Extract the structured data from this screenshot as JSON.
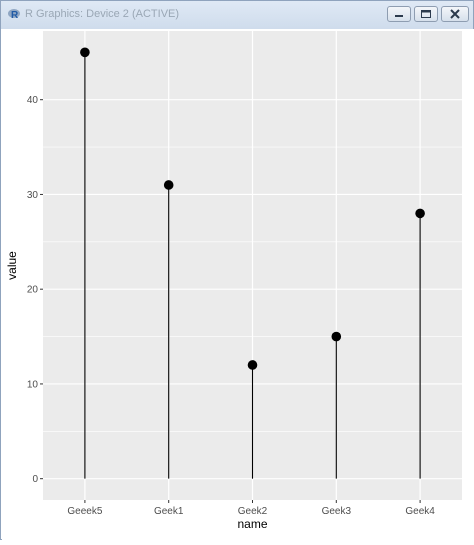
{
  "window": {
    "title": "R Graphics: Device 2 (ACTIVE)",
    "icon": "r-logo-icon",
    "controls": [
      "minimize-icon",
      "maximize-icon",
      "close-icon"
    ]
  },
  "chart_data": {
    "type": "lollipop",
    "categories": [
      "Geeek5",
      "Geek1",
      "Geek2",
      "Geek3",
      "Geek4"
    ],
    "values": [
      45,
      31,
      12,
      15,
      28
    ],
    "xlabel": "name",
    "ylabel": "value",
    "ylim": [
      -2.25,
      47.25
    ],
    "yticks": [
      0,
      10,
      20,
      30,
      40
    ],
    "grid": true,
    "colors": {
      "panel": "#ebebeb",
      "grid": "#ffffff",
      "point": "#000000",
      "axis_text": "#4d4d4d"
    }
  }
}
